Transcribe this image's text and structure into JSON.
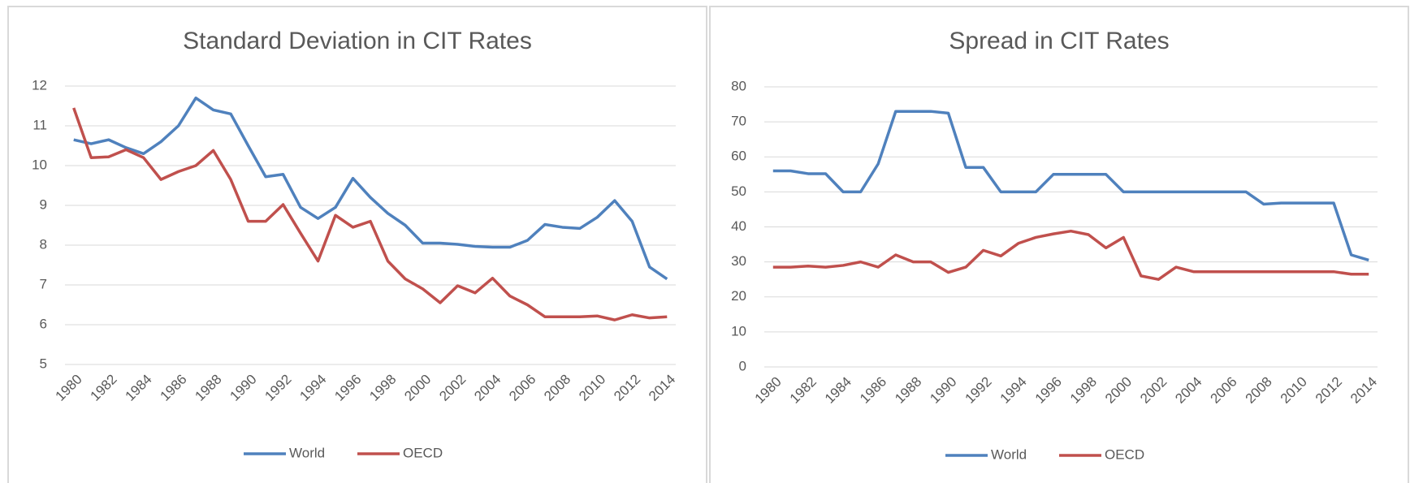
{
  "chart_data": [
    {
      "type": "line",
      "title": "Standard Deviation in CIT Rates",
      "x": [
        1980,
        1981,
        1982,
        1983,
        1984,
        1985,
        1986,
        1987,
        1988,
        1989,
        1990,
        1991,
        1992,
        1993,
        1994,
        1995,
        1996,
        1997,
        1998,
        1999,
        2000,
        2001,
        2002,
        2003,
        2004,
        2005,
        2006,
        2007,
        2008,
        2009,
        2010,
        2011,
        2012,
        2013,
        2014
      ],
      "xlim": [
        1979.5,
        2014.5
      ],
      "xticks": [
        1980,
        1982,
        1984,
        1986,
        1988,
        1990,
        1992,
        1994,
        1996,
        1998,
        2000,
        2002,
        2004,
        2006,
        2008,
        2010,
        2012,
        2014
      ],
      "ylim": [
        5,
        12
      ],
      "yticks": [
        5,
        6,
        7,
        8,
        9,
        10,
        11,
        12
      ],
      "grid": true,
      "legend": "bottom",
      "series": [
        {
          "name": "World",
          "color": "#4f81bd",
          "values": [
            10.65,
            10.55,
            10.65,
            10.45,
            10.3,
            10.6,
            11.0,
            11.7,
            11.4,
            11.3,
            10.5,
            9.72,
            9.78,
            8.95,
            8.67,
            8.95,
            9.68,
            9.2,
            8.8,
            8.5,
            8.05,
            8.05,
            8.02,
            7.97,
            7.95,
            7.95,
            8.12,
            8.52,
            8.45,
            8.42,
            8.7,
            9.12,
            8.6,
            7.45,
            7.15
          ]
        },
        {
          "name": "OECD",
          "color": "#c0504d",
          "values": [
            11.45,
            10.2,
            10.22,
            10.4,
            10.2,
            9.65,
            9.85,
            10.0,
            10.38,
            9.65,
            8.6,
            8.6,
            9.02,
            8.3,
            7.6,
            8.75,
            8.45,
            8.6,
            7.6,
            7.15,
            6.9,
            6.55,
            6.98,
            6.8,
            7.17,
            6.72,
            6.5,
            6.2,
            6.2,
            6.2,
            6.22,
            6.12,
            6.25,
            6.17,
            6.2
          ]
        }
      ]
    },
    {
      "type": "line",
      "title": "Spread in CIT Rates",
      "x": [
        1980,
        1981,
        1982,
        1983,
        1984,
        1985,
        1986,
        1987,
        1988,
        1989,
        1990,
        1991,
        1992,
        1993,
        1994,
        1995,
        1996,
        1997,
        1998,
        1999,
        2000,
        2001,
        2002,
        2003,
        2004,
        2005,
        2006,
        2007,
        2008,
        2009,
        2010,
        2011,
        2012,
        2013,
        2014
      ],
      "xlim": [
        1979.5,
        2014.5
      ],
      "xticks": [
        1980,
        1982,
        1984,
        1986,
        1988,
        1990,
        1992,
        1994,
        1996,
        1998,
        2000,
        2002,
        2004,
        2006,
        2008,
        2010,
        2012,
        2014
      ],
      "ylim": [
        0,
        80
      ],
      "yticks": [
        0,
        10,
        20,
        30,
        40,
        50,
        60,
        70,
        80
      ],
      "grid": true,
      "legend": "bottom",
      "series": [
        {
          "name": "World",
          "color": "#4f81bd",
          "values": [
            56,
            56,
            55.2,
            55.2,
            50,
            50,
            58,
            73,
            73,
            73,
            72.5,
            57,
            57,
            50,
            50,
            50,
            55,
            55,
            55,
            55,
            50,
            50,
            50,
            50,
            50,
            50,
            50,
            50,
            46.5,
            46.8,
            46.8,
            46.8,
            46.8,
            32,
            30.5
          ]
        },
        {
          "name": "OECD",
          "color": "#c0504d",
          "values": [
            28.5,
            28.5,
            28.8,
            28.5,
            29,
            30,
            28.5,
            32,
            30,
            30,
            27,
            28.5,
            33.3,
            31.7,
            35.3,
            37,
            38,
            38.8,
            37.8,
            34,
            37,
            26,
            25,
            28.5,
            27.2,
            27.2,
            27.2,
            27.2,
            27.2,
            27.2,
            27.2,
            27.2,
            27.2,
            26.5,
            26.5
          ]
        }
      ]
    }
  ]
}
